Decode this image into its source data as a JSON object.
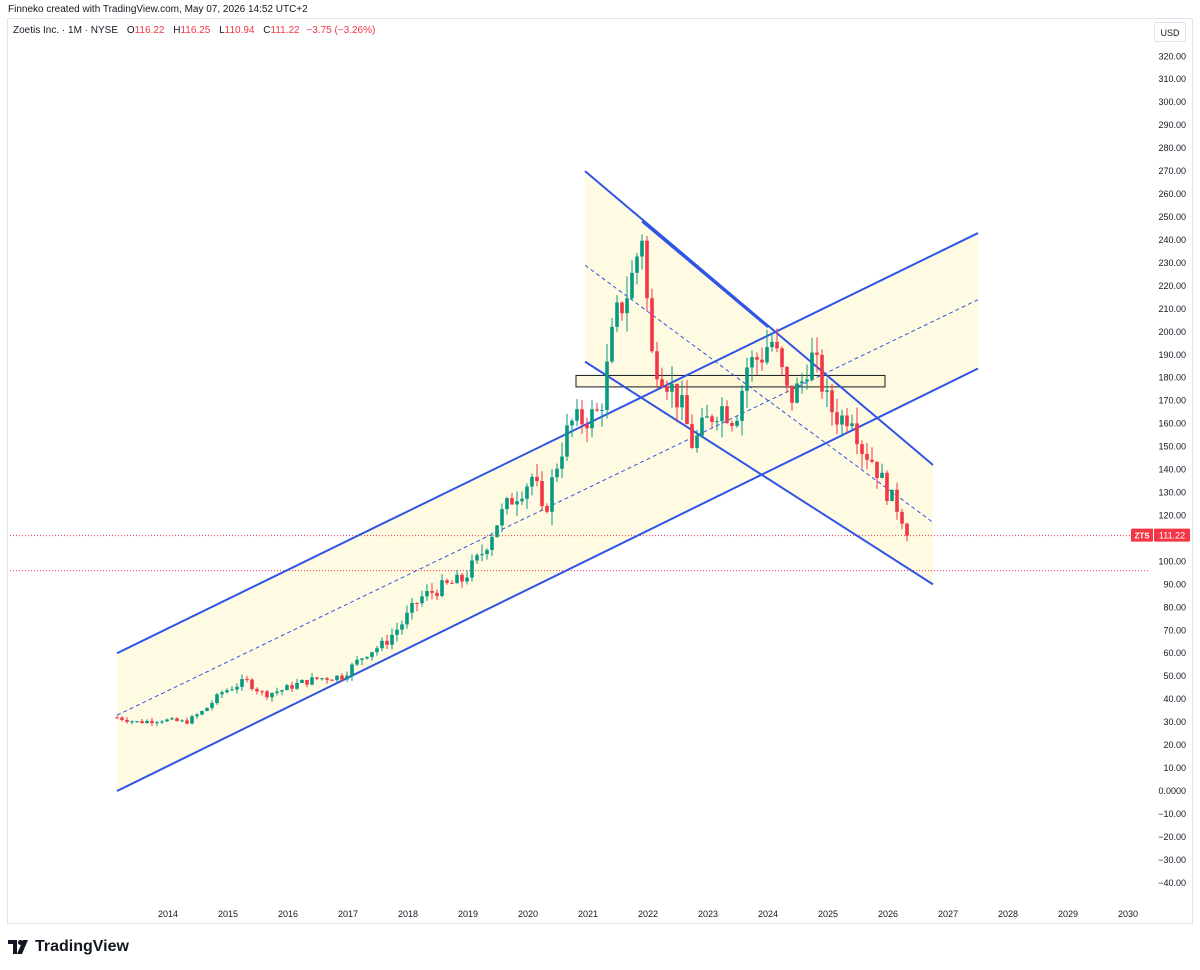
{
  "header": {
    "credit": "Finneko created with TradingView.com, May 07, 2026 14:52 UTC+2"
  },
  "legend": {
    "symbol": "Zoetis Inc. · 1M · NYSE",
    "open_label": "O",
    "open": "116.22",
    "high_label": "H",
    "high": "116.25",
    "low_label": "L",
    "low": "110.94",
    "close_label": "C",
    "close": "111.22",
    "change": "−3.75 (−3.26%)"
  },
  "currency": "USD",
  "price_tag": {
    "ticker": "ZTS",
    "price": "111.22"
  },
  "footer": {
    "brand": "TradingView"
  },
  "colors": {
    "up": "#089981",
    "down": "#f23645",
    "line": "#2f55e4",
    "fill": "#fffbe3"
  },
  "chart_data": {
    "type": "candlestick",
    "title": "Zoetis Inc. · 1M · NYSE",
    "y_ticks": [
      "320.00",
      "310.00",
      "300.00",
      "290.00",
      "280.00",
      "270.00",
      "260.00",
      "250.00",
      "240.00",
      "230.00",
      "220.00",
      "210.00",
      "200.00",
      "190.00",
      "180.00",
      "170.00",
      "160.00",
      "150.00",
      "140.00",
      "130.00",
      "120.00",
      "110.00",
      "100.00",
      "90.00",
      "80.00",
      "70.00",
      "60.00",
      "50.00",
      "40.00",
      "30.00",
      "20.00",
      "10.00",
      "0.0000",
      "−10.00",
      "−20.00",
      "−30.00",
      "−40.00"
    ],
    "x_ticks": [
      "2014",
      "2015",
      "2016",
      "2017",
      "2018",
      "2019",
      "2020",
      "2021",
      "2022",
      "2023",
      "2024",
      "2025",
      "2026",
      "2027",
      "2028",
      "2029",
      "2030"
    ],
    "ylim": [
      -40,
      320
    ],
    "xlim": [
      2013.1,
      2030.4
    ],
    "last_close": 111.22,
    "anchors": [
      [
        2013.15,
        32
      ],
      [
        2013.5,
        30
      ],
      [
        2013.9,
        31
      ],
      [
        2014.3,
        30
      ],
      [
        2014.6,
        35
      ],
      [
        2014.9,
        43
      ],
      [
        2015.3,
        48
      ],
      [
        2015.6,
        42
      ],
      [
        2015.9,
        44
      ],
      [
        2016.2,
        47
      ],
      [
        2016.5,
        49
      ],
      [
        2016.9,
        50
      ],
      [
        2017.3,
        60
      ],
      [
        2017.6,
        64
      ],
      [
        2017.9,
        73
      ],
      [
        2018.2,
        84
      ],
      [
        2018.5,
        88
      ],
      [
        2018.9,
        92
      ],
      [
        2019.2,
        102
      ],
      [
        2019.5,
        118
      ],
      [
        2019.75,
        128
      ],
      [
        2019.95,
        133
      ],
      [
        2020.1,
        138
      ],
      [
        2020.25,
        118
      ],
      [
        2020.45,
        140
      ],
      [
        2020.7,
        160
      ],
      [
        2020.95,
        162
      ],
      [
        2021.2,
        165
      ],
      [
        2021.45,
        205
      ],
      [
        2021.7,
        220
      ],
      [
        2021.9,
        243
      ],
      [
        2022.05,
        190
      ],
      [
        2022.3,
        180
      ],
      [
        2022.55,
        168
      ],
      [
        2022.75,
        150
      ],
      [
        2022.95,
        160
      ],
      [
        2023.2,
        168
      ],
      [
        2023.45,
        162
      ],
      [
        2023.65,
        185
      ],
      [
        2023.9,
        190
      ],
      [
        2024.05,
        197
      ],
      [
        2024.2,
        185
      ],
      [
        2024.35,
        170
      ],
      [
        2024.55,
        177
      ],
      [
        2024.7,
        190
      ],
      [
        2024.85,
        182
      ],
      [
        2025.0,
        168
      ],
      [
        2025.2,
        162
      ],
      [
        2025.4,
        165
      ],
      [
        2025.55,
        150
      ],
      [
        2025.75,
        144
      ],
      [
        2025.9,
        135
      ],
      [
        2026.1,
        125
      ],
      [
        2026.2,
        123
      ],
      [
        2026.32,
        111.22
      ]
    ],
    "bands": [
      {
        "from": [
          2013.15,
          60
        ],
        "to": [
          2027.5,
          243
        ],
        "name": ""
      },
      {
        "from": [
          2013.15,
          33
        ],
        "to": [
          2027.5,
          214
        ],
        "name": "",
        "dashed": true
      },
      {
        "from": [
          2013.15,
          0
        ],
        "to": [
          2027.5,
          184
        ],
        "name": ""
      },
      {
        "from": [
          2020.95,
          270
        ],
        "to": [
          2026.75,
          142
        ],
        "name": ""
      },
      {
        "from": [
          2020.95,
          229
        ],
        "to": [
          2026.75,
          117
        ],
        "name": "",
        "dashed": true
      },
      {
        "from": [
          2020.95,
          187
        ],
        "to": [
          2026.75,
          90
        ],
        "name": ""
      },
      {
        "from": [
          2021.9,
          248
        ],
        "to": [
          2024.0,
          202
        ],
        "name": ""
      }
    ],
    "zone": {
      "x0": 2020.8,
      "x1": 2025.95,
      "y0": 176,
      "y1": 181
    },
    "hlines": [
      111.22,
      96
    ]
  }
}
